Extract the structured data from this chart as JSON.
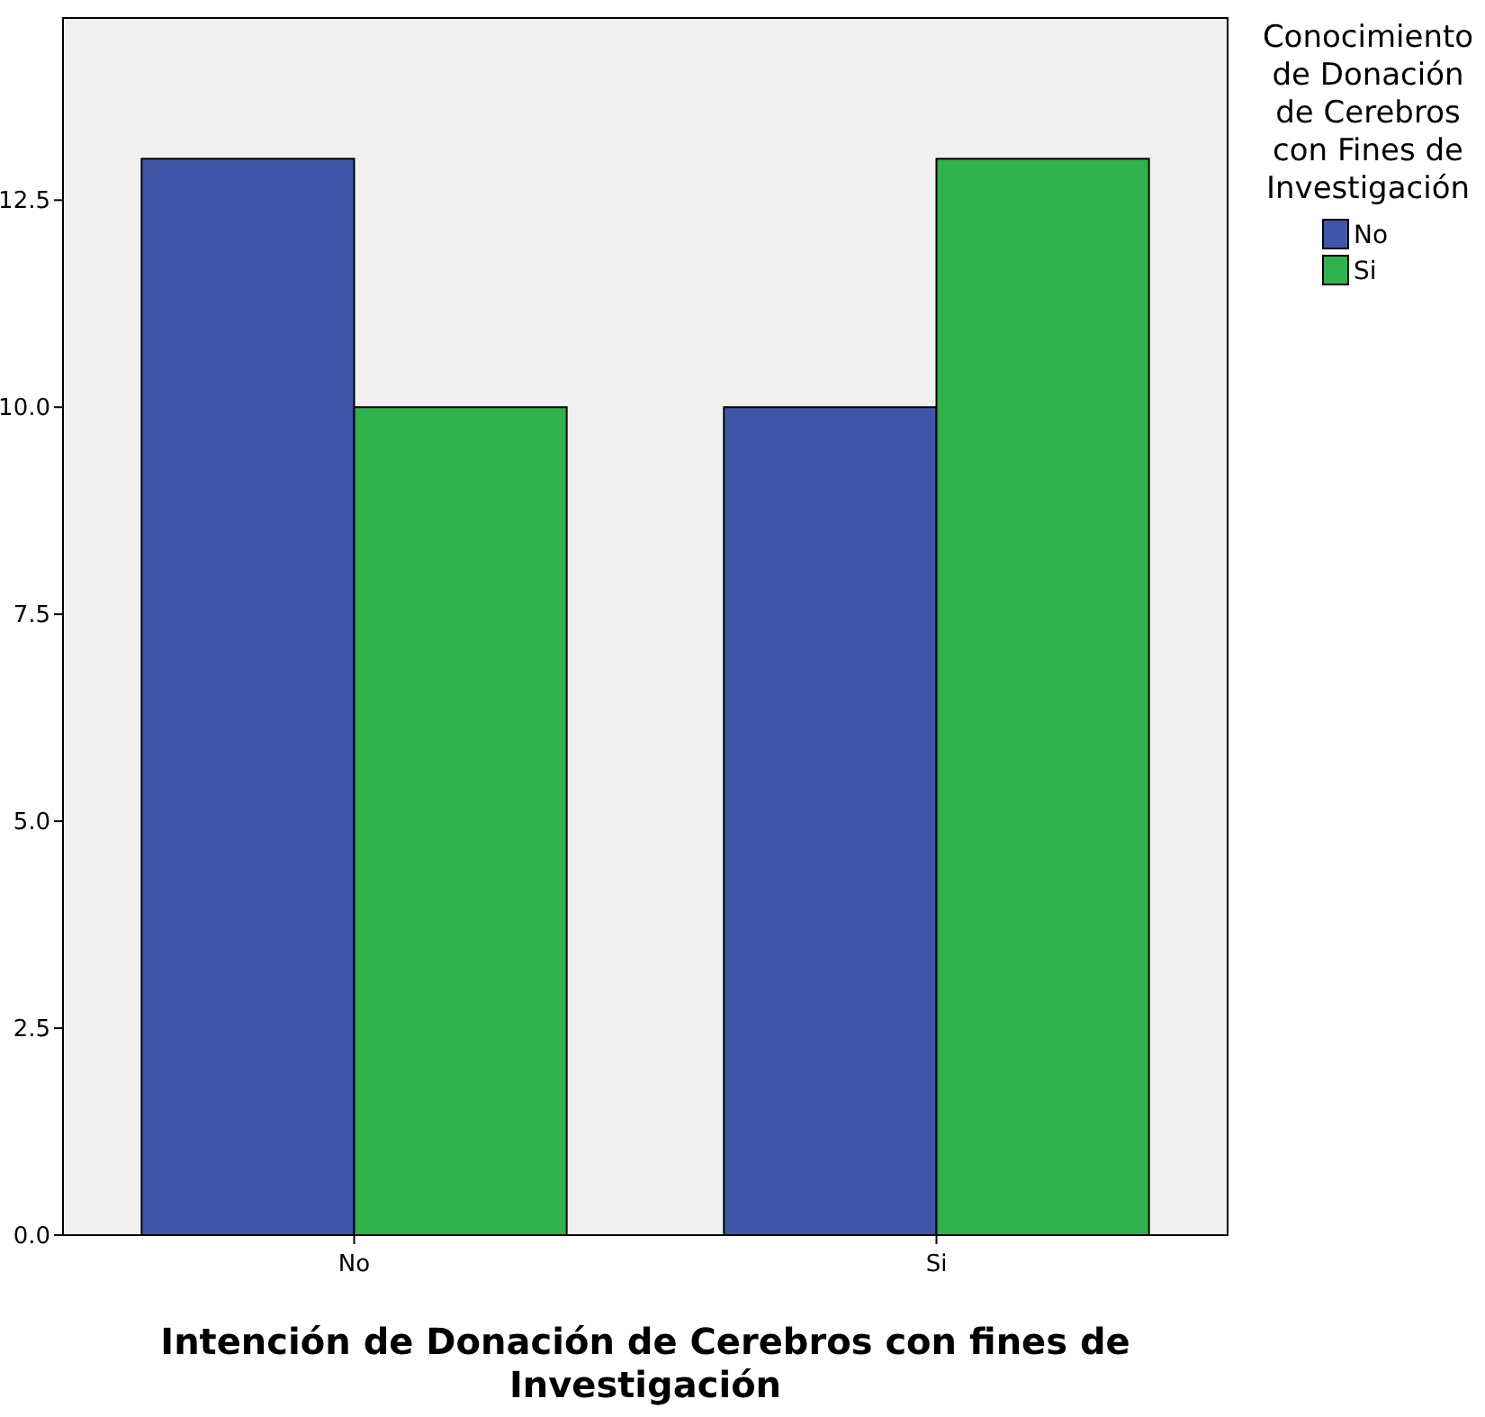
{
  "chart_data": {
    "type": "bar",
    "xlabel": "Intención de Donación de Cerebros con fines de Investigación",
    "legend_title": "Conocimiento de Donación de Cerebros con Fines de Investigación",
    "categories": [
      "No",
      "Si"
    ],
    "series": [
      {
        "name": "No",
        "color": "#3f56a8",
        "values": [
          13,
          10
        ]
      },
      {
        "name": "Si",
        "color": "#2fb34a",
        "values": [
          10,
          13
        ]
      }
    ],
    "ylim": [
      0,
      14.7
    ],
    "yticks": [
      {
        "value": 0,
        "label": "0.0"
      },
      {
        "value": 2.5,
        "label": "2.5"
      },
      {
        "value": 5,
        "label": "5.0"
      },
      {
        "value": 7.5,
        "label": "7.5"
      },
      {
        "value": 10,
        "label": "10.0"
      },
      {
        "value": 12.5,
        "label": "12.5"
      }
    ],
    "grid": false,
    "legend": "right"
  }
}
